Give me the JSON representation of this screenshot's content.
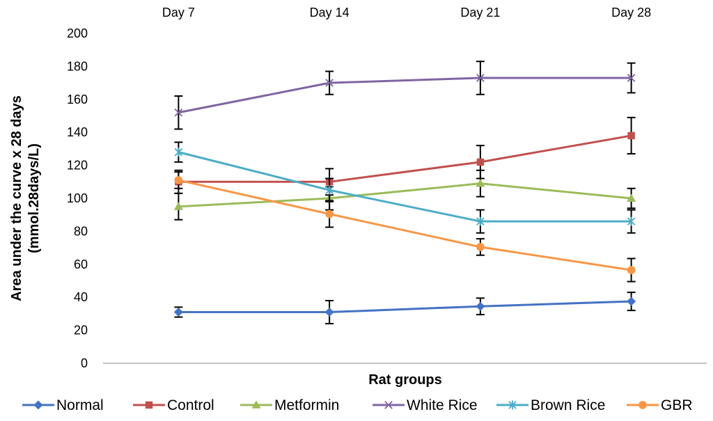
{
  "chart_data": {
    "type": "line",
    "title": "",
    "categories": [
      "Day 7",
      "Day 14",
      "Day 21",
      "Day 28"
    ],
    "xlabel": "Rat groups",
    "ylabel": "Area under the curve x 28 days",
    "ylabel_line2": "(mmol.28days/L)",
    "ylim": [
      0,
      200
    ],
    "ytick_step": 20,
    "yticks": [
      "0",
      "20",
      "40",
      "60",
      "80",
      "100",
      "120",
      "140",
      "160",
      "180",
      "200"
    ],
    "legend_position": "bottom",
    "series": [
      {
        "name": "Normal",
        "color": "#4472C4",
        "marker": "diamond",
        "values": [
          31,
          31,
          34.5,
          37.5
        ],
        "errors": [
          3,
          7,
          5,
          5.5
        ]
      },
      {
        "name": "Control",
        "color": "#C0504D",
        "marker": "square",
        "values": [
          110,
          110,
          122,
          138
        ],
        "errors": [
          7,
          8,
          10,
          11
        ]
      },
      {
        "name": "Metformin",
        "color": "#9BBB59",
        "marker": "triangle",
        "values": [
          95,
          100,
          109,
          100
        ],
        "errors": [
          8,
          7,
          8,
          6
        ]
      },
      {
        "name": "White Rice",
        "color": "#8064A2",
        "marker": "x",
        "values": [
          152,
          170,
          173,
          173
        ],
        "errors": [
          10,
          7,
          10,
          9
        ]
      },
      {
        "name": "Brown Rice",
        "color": "#4BACC6",
        "marker": "star",
        "values": [
          128,
          105,
          86,
          86
        ],
        "errors": [
          6,
          7,
          7,
          7
        ]
      },
      {
        "name": "GBR",
        "color": "#F79646",
        "marker": "circle",
        "values": [
          111,
          90.5,
          70.5,
          56.5
        ],
        "errors": [
          5,
          8,
          5,
          7
        ]
      }
    ]
  }
}
